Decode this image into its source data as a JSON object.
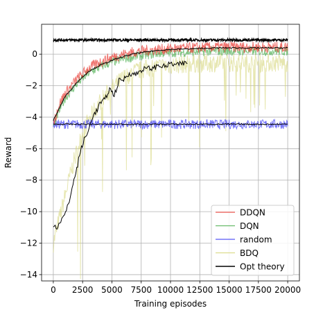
{
  "chart_data": {
    "type": "line",
    "xlabel": "Training episodes",
    "ylabel": "Reward",
    "xlim": [
      -1000,
      21000
    ],
    "ylim": [
      -14.4,
      1.9
    ],
    "x_ticks": [
      0,
      2500,
      5000,
      7500,
      10000,
      12500,
      15000,
      17500,
      20000
    ],
    "x_tick_labels": [
      "0",
      "2500",
      "5000",
      "7500",
      "10000",
      "12500",
      "15000",
      "17500",
      "20000"
    ],
    "y_ticks": [
      -14,
      -12,
      -10,
      -8,
      -6,
      -4,
      -2,
      0
    ],
    "y_tick_labels": [
      "−14",
      "−12",
      "−10",
      "−8",
      "−6",
      "−4",
      "−2",
      "0"
    ],
    "grid": true,
    "legend_position": "lower right",
    "series": [
      {
        "name": "DDQN",
        "color": "#e8362f",
        "style": "noisy band",
        "x": [
          0,
          500,
          1000,
          2000,
          3000,
          4000,
          5000,
          6000,
          7000,
          8000,
          9000,
          10000,
          12000,
          14000,
          16000,
          18000,
          20000
        ],
        "y": [
          -4.4,
          -3.2,
          -2.5,
          -1.6,
          -0.9,
          -0.5,
          -0.2,
          0.0,
          0.15,
          0.25,
          0.3,
          0.35,
          0.4,
          0.45,
          0.45,
          0.45,
          0.45
        ],
        "spread": 0.35
      },
      {
        "name": "DQN",
        "color": "#4caf50",
        "style": "noisy band",
        "x": [
          0,
          500,
          1000,
          2000,
          3000,
          4000,
          5000,
          6000,
          7000,
          8000,
          9000,
          10000,
          12000,
          14000,
          16000,
          18000,
          20000
        ],
        "y": [
          -4.6,
          -3.6,
          -2.8,
          -1.9,
          -1.2,
          -0.8,
          -0.5,
          -0.3,
          -0.15,
          -0.05,
          0.05,
          0.1,
          0.15,
          0.2,
          0.2,
          0.2,
          0.2
        ],
        "spread": 0.3
      },
      {
        "name": "random",
        "color": "#3b3bf5",
        "style": "noisy band",
        "x": [
          0,
          20000
        ],
        "y": [
          -4.45,
          -4.45
        ],
        "spread": 0.3
      },
      {
        "name": "BDQ",
        "color": "#d6d67a",
        "style": "noisy band with spikes",
        "x": [
          0,
          500,
          1000,
          1500,
          2000,
          2500,
          3000,
          4000,
          5000,
          6000,
          7000,
          8000,
          9000,
          10000,
          11500,
          14000,
          17000,
          20000
        ],
        "y": [
          -12.0,
          -10.5,
          -9.0,
          -7.5,
          -6.2,
          -5.0,
          -4.2,
          -3.0,
          -2.2,
          -1.5,
          -1.1,
          -0.9,
          -0.8,
          -0.7,
          -0.6,
          -0.55,
          -0.55,
          -0.55
        ],
        "spread": 0.6
      },
      {
        "name": "Opt theory",
        "color": "#000000",
        "style": "line",
        "x": [
          0,
          20000
        ],
        "y": [
          0.9,
          0.9
        ],
        "spread": 0.08
      }
    ],
    "mean_curves": [
      {
        "color": "#000000",
        "x": [
          0,
          1000,
          2000,
          3000,
          4000,
          5000,
          6000,
          7000,
          8000,
          9000,
          10000,
          12000,
          14000,
          16000,
          18000,
          20000
        ],
        "y": [
          -4.2,
          -2.7,
          -1.8,
          -1.1,
          -0.7,
          -0.4,
          -0.15,
          0.05,
          0.15,
          0.25,
          0.3,
          0.35,
          0.4,
          0.4,
          0.4,
          0.4
        ]
      },
      {
        "color": "#000000",
        "x": [
          0,
          20000
        ],
        "y": [
          -4.45,
          -4.45
        ]
      },
      {
        "color": "#000000",
        "x": [
          0,
          300,
          600,
          1000,
          1300,
          1600,
          2000,
          2300,
          2600,
          3000,
          3300,
          3700,
          4000,
          4400,
          4800,
          5200,
          5600,
          6000,
          6500,
          7000,
          7500,
          8000,
          8500,
          9000,
          9500,
          10000,
          10500,
          11000,
          11500
        ],
        "y": [
          -10.8,
          -11.0,
          -10.6,
          -10.2,
          -9.5,
          -8.5,
          -7.3,
          -6.2,
          -5.5,
          -4.9,
          -4.0,
          -3.6,
          -3.1,
          -2.9,
          -2.2,
          -2.6,
          -1.7,
          -1.6,
          -1.2,
          -1.3,
          -1.0,
          -0.9,
          -0.9,
          -0.7,
          -0.8,
          -0.6,
          -0.7,
          -0.6,
          -0.55
        ]
      }
    ]
  }
}
